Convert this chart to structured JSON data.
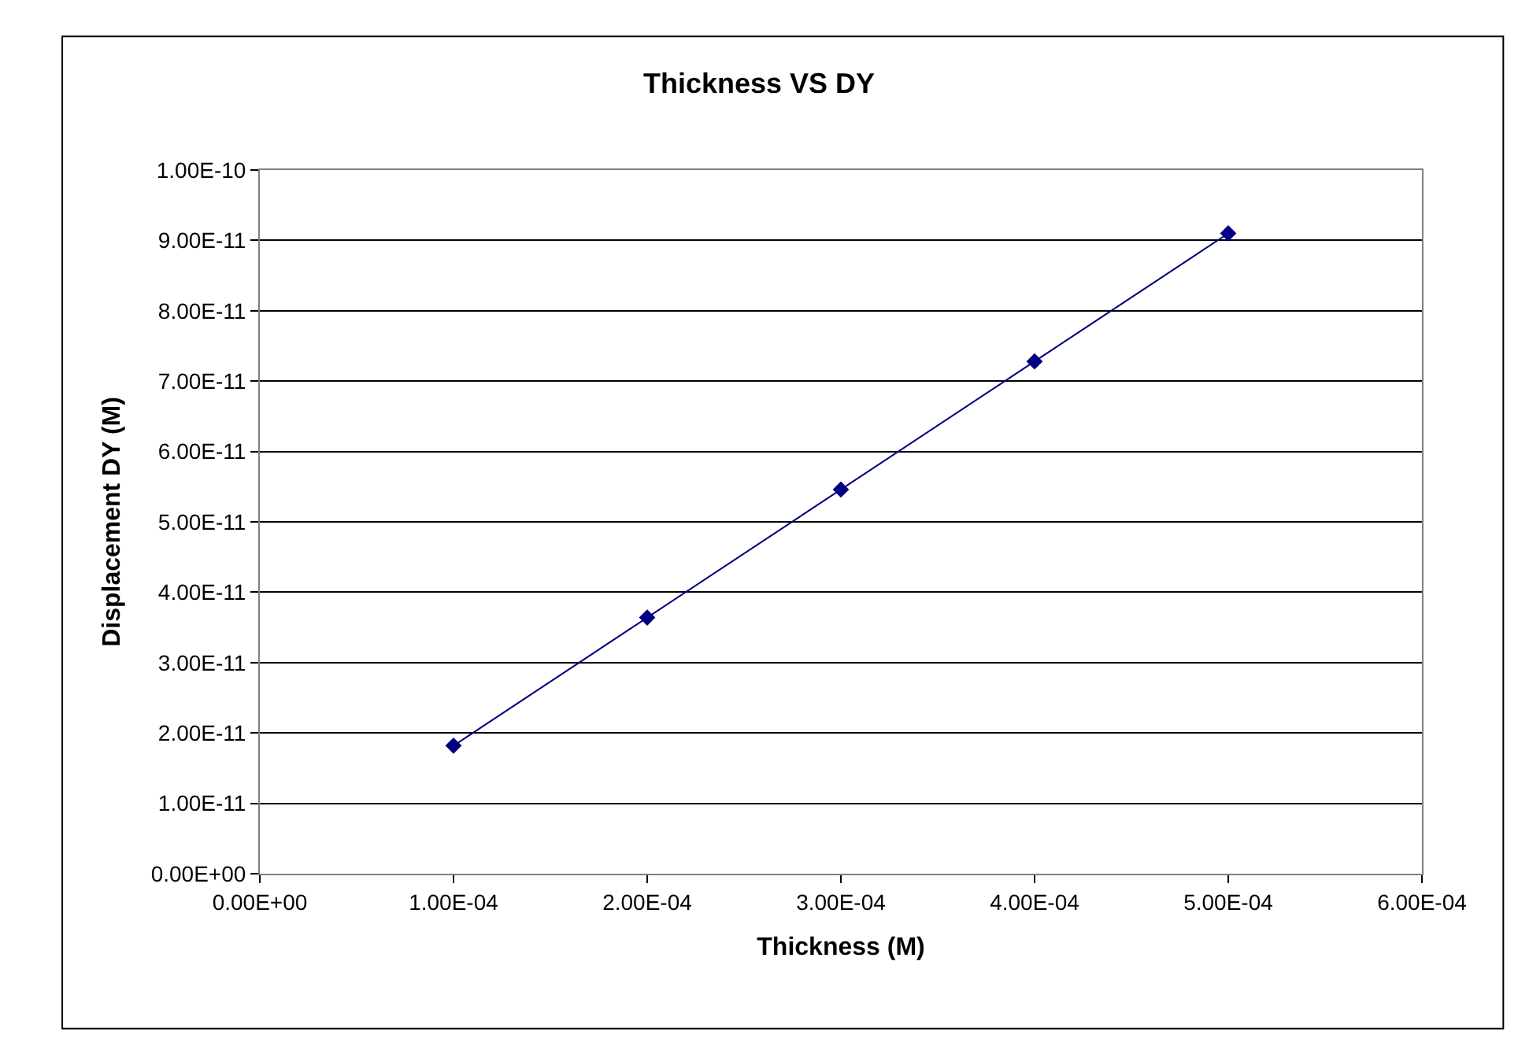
{
  "chart_data": {
    "type": "line",
    "title": "Thickness VS DY",
    "xlabel": "Thickness (M)",
    "ylabel": "Displacement DY (M)",
    "x": [
      0.0001,
      0.0002,
      0.0003,
      0.0004,
      0.0005
    ],
    "series": [
      {
        "color": "#000080",
        "values": [
          1.82e-11,
          3.64e-11,
          5.46e-11,
          7.28e-11,
          9.1e-11
        ]
      }
    ],
    "xlim": [
      0,
      0.0006
    ],
    "xticks": [
      {
        "value": 0,
        "label": "0.00E+00"
      },
      {
        "value": 0.0001,
        "label": "1.00E-04"
      },
      {
        "value": 0.0002,
        "label": "2.00E-04"
      },
      {
        "value": 0.0003,
        "label": "3.00E-04"
      },
      {
        "value": 0.0004,
        "label": "4.00E-04"
      },
      {
        "value": 0.0005,
        "label": "5.00E-04"
      },
      {
        "value": 0.0006,
        "label": "6.00E-04"
      }
    ],
    "ylim": [
      0,
      1e-10
    ],
    "yticks": [
      {
        "value": 0,
        "label": "0.00E+00"
      },
      {
        "value": 1e-11,
        "label": "1.00E-11"
      },
      {
        "value": 2e-11,
        "label": "2.00E-11"
      },
      {
        "value": 3e-11,
        "label": "3.00E-11"
      },
      {
        "value": 4e-11,
        "label": "4.00E-11"
      },
      {
        "value": 5e-11,
        "label": "5.00E-11"
      },
      {
        "value": 6e-11,
        "label": "6.00E-11"
      },
      {
        "value": 7e-11,
        "label": "7.00E-11"
      },
      {
        "value": 8e-11,
        "label": "8.00E-11"
      },
      {
        "value": 9e-11,
        "label": "9.00E-11"
      },
      {
        "value": 1e-10,
        "label": "1.00E-10"
      }
    ],
    "grid": "y",
    "marker": "diamond",
    "line_style": "solid",
    "legend": false
  }
}
